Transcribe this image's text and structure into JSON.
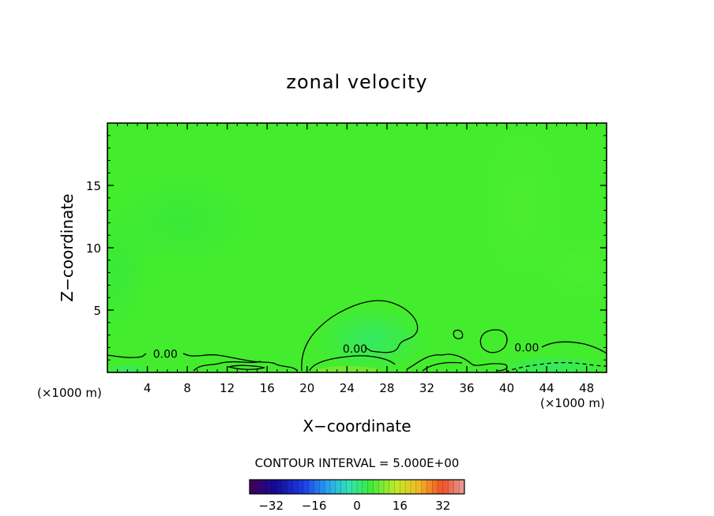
{
  "chart_data": {
    "type": "heatmap",
    "title": "zonal velocity",
    "xlabel": "X−coordinate",
    "ylabel": "Z−coordinate",
    "xunit_left": "(×1000 m)",
    "xunit_right": "(×1000 m)",
    "xlim": [
      0,
      50
    ],
    "ylim": [
      0,
      20
    ],
    "x_ticks": [
      4,
      8,
      12,
      16,
      20,
      24,
      28,
      32,
      36,
      40,
      44,
      48
    ],
    "y_ticks": [
      5,
      10,
      15
    ],
    "field_value_range": [
      -5,
      5
    ],
    "contour_labels": [
      {
        "text": "0.00",
        "x": 5.8,
        "z": 1.5
      },
      {
        "text": "0.00",
        "x": 24.8,
        "z": 1.9
      },
      {
        "text": "0.00",
        "x": 42.0,
        "z": 2.0
      }
    ],
    "contour_interval_text": "CONTOUR INTERVAL = 5.000E+00",
    "colorbar": {
      "min": -40,
      "max": 40,
      "ticks": [
        "−32",
        "−16",
        "0",
        "16",
        "32"
      ],
      "tick_values": [
        -32,
        -16,
        0,
        16,
        32
      ]
    }
  }
}
